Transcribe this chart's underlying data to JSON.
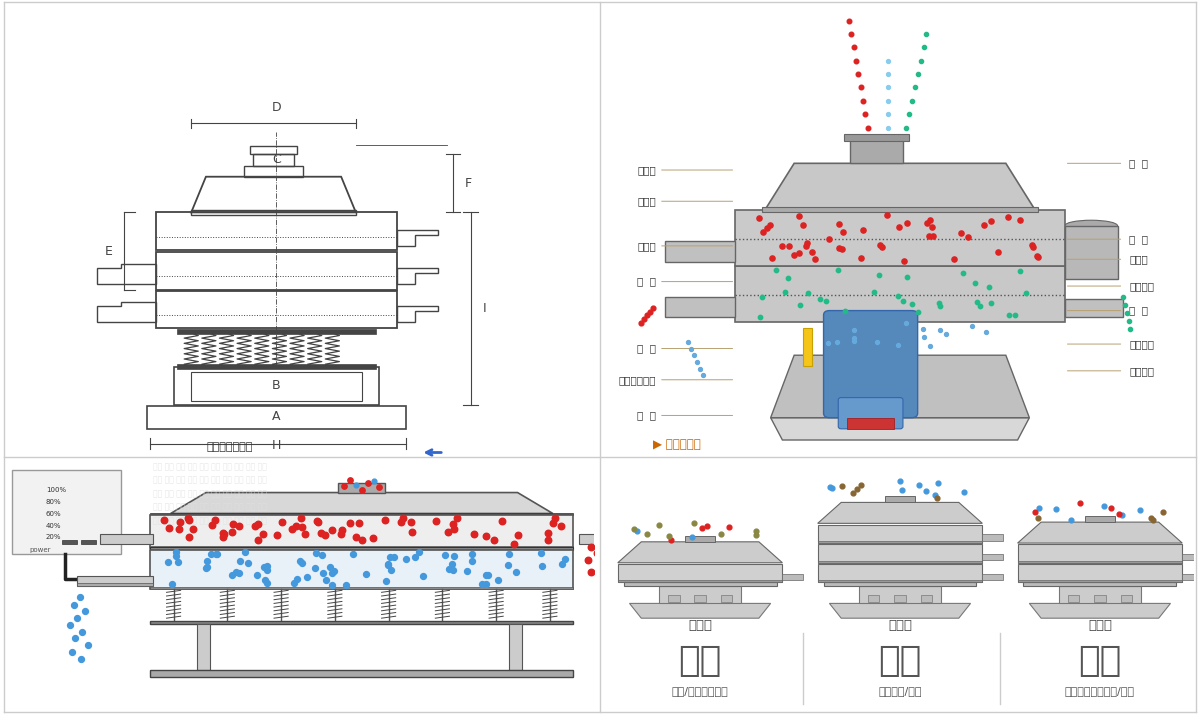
{
  "bg_color": "#ffffff",
  "divider_color": "#cccccc",
  "red_color": "#dd2222",
  "blue_color": "#4499dd",
  "green_color": "#22bb88",
  "teal_color": "#55bbcc",
  "brown_color": "#886644",
  "line_color": "#b8a070",
  "text_color": "#333333",
  "machine_light": "#d8d8d8",
  "machine_mid": "#bbbbbb",
  "machine_dark": "#888888",
  "drawing_line": "#444444",
  "caption_left": "外形尺寸示意图",
  "caption_right": "结构示意图",
  "left_labels": [
    [
      0.635,
      "进料口"
    ],
    [
      0.565,
      "防尘盖"
    ],
    [
      0.465,
      "出料口"
    ],
    [
      0.385,
      "束  环"
    ],
    [
      0.235,
      "弹  簧"
    ],
    [
      0.165,
      "运输固定螺栓"
    ],
    [
      0.085,
      "机  座"
    ]
  ],
  "right_labels": [
    [
      0.65,
      "筛  网"
    ],
    [
      0.48,
      "网  架"
    ],
    [
      0.435,
      "加重块"
    ],
    [
      0.375,
      "上部重锤"
    ],
    [
      0.32,
      "筛  盘"
    ],
    [
      0.245,
      "振动电机"
    ],
    [
      0.185,
      "下部重锤"
    ]
  ],
  "sections": [
    {
      "title": "分级",
      "subtitle": "颗粒/粉末准确分级",
      "label": "单层式",
      "layers": 1
    },
    {
      "title": "过滤",
      "subtitle": "去除异物/结块",
      "label": "三层式",
      "layers": 3
    },
    {
      "title": "除杂",
      "subtitle": "去除液体中的颗粒/异物",
      "label": "双层式",
      "layers": 2
    }
  ]
}
